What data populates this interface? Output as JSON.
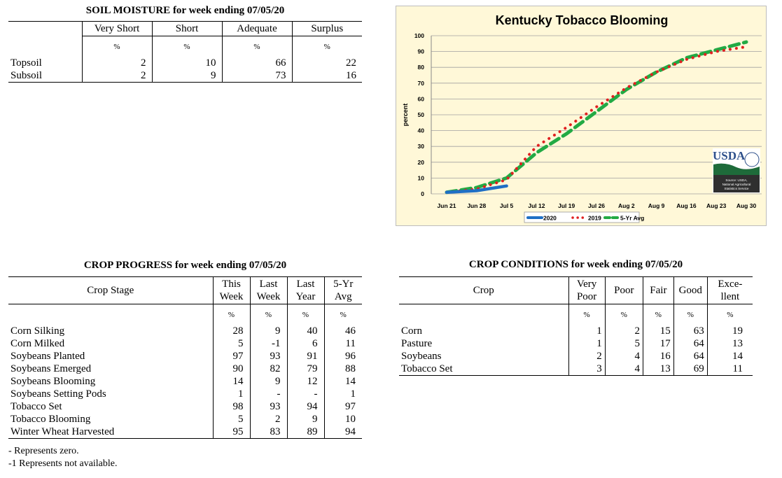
{
  "soil": {
    "title": "SOIL MOISTURE for week ending 07/05/20",
    "columns": [
      "Very Short",
      "Short",
      "Adequate",
      "Surplus"
    ],
    "unit": "%",
    "rows": [
      {
        "label": "Topsoil",
        "values": [
          "2",
          "10",
          "66",
          "22"
        ]
      },
      {
        "label": "Subsoil",
        "values": [
          "2",
          "9",
          "73",
          "16"
        ]
      }
    ]
  },
  "progress": {
    "title": "CROP PROGRESS for week ending 07/05/20",
    "stage_header": "Crop Stage",
    "columns": [
      {
        "line1": "This",
        "line2": "Week"
      },
      {
        "line1": "Last",
        "line2": "Week"
      },
      {
        "line1": "Last",
        "line2": "Year"
      },
      {
        "line1": "5-Yr",
        "line2": "Avg"
      }
    ],
    "unit": "%",
    "rows": [
      {
        "label": "Corn Silking",
        "values": [
          "28",
          "9",
          "40",
          "46"
        ]
      },
      {
        "label": "Corn Milked",
        "values": [
          "5",
          "-1",
          "6",
          "11"
        ]
      },
      {
        "label": "Soybeans Planted",
        "values": [
          "97",
          "93",
          "91",
          "96"
        ]
      },
      {
        "label": "Soybeans Emerged",
        "values": [
          "90",
          "82",
          "79",
          "88"
        ]
      },
      {
        "label": "Soybeans Blooming",
        "values": [
          "14",
          "9",
          "12",
          "14"
        ]
      },
      {
        "label": "Soybeans Setting Pods",
        "values": [
          "1",
          "-",
          "-",
          "1"
        ]
      },
      {
        "label": "Tobacco Set",
        "values": [
          "98",
          "93",
          "94",
          "97"
        ]
      },
      {
        "label": "Tobacco Blooming",
        "values": [
          "5",
          "2",
          "9",
          "10"
        ]
      },
      {
        "label": "Winter Wheat Harvested",
        "values": [
          "95",
          "83",
          "89",
          "94"
        ]
      }
    ],
    "footnotes": [
      "- Represents zero.",
      "-1 Represents not available."
    ]
  },
  "conditions": {
    "title": "CROP CONDITIONS for week ending 07/05/20",
    "crop_header": "Crop",
    "columns": [
      {
        "line1": "Very",
        "line2": "Poor"
      },
      {
        "line1": "Poor",
        "line2": ""
      },
      {
        "line1": "Fair",
        "line2": ""
      },
      {
        "line1": "Good",
        "line2": ""
      },
      {
        "line1": "Exce-",
        "line2": "llent"
      }
    ],
    "unit": "%",
    "rows": [
      {
        "label": "Corn",
        "values": [
          "1",
          "2",
          "15",
          "63",
          "19"
        ]
      },
      {
        "label": "Pasture",
        "values": [
          "1",
          "5",
          "17",
          "64",
          "13"
        ]
      },
      {
        "label": "Soybeans",
        "values": [
          "2",
          "4",
          "16",
          "64",
          "14"
        ]
      },
      {
        "label": "Tobacco Set",
        "values": [
          "3",
          "4",
          "13",
          "69",
          "11"
        ]
      }
    ]
  },
  "chart_data": {
    "type": "line",
    "title": "Kentucky Tobacco Blooming",
    "ylabel": "percent",
    "xlabel": "",
    "ylim": [
      0,
      100
    ],
    "yticks": [
      0,
      10,
      20,
      30,
      40,
      50,
      60,
      70,
      80,
      90,
      100
    ],
    "categories": [
      "Jun 21",
      "Jun 28",
      "Jul 5",
      "Jul 12",
      "Jul 19",
      "Jul 26",
      "Aug 2",
      "Aug 9",
      "Aug 16",
      "Aug 23",
      "Aug 30"
    ],
    "grid": true,
    "legend_position": "bottom",
    "series": [
      {
        "name": "2020",
        "color": "#1f6fc5",
        "style": "solid",
        "values": [
          1,
          2,
          5,
          null,
          null,
          null,
          null,
          null,
          null,
          null,
          null
        ]
      },
      {
        "name": "2019",
        "color": "#e02020",
        "style": "dotted",
        "values": [
          1,
          3,
          9,
          30,
          42,
          55,
          67,
          77,
          85,
          90,
          93
        ]
      },
      {
        "name": "5-Yr Avg",
        "color": "#22aa44",
        "style": "dashed",
        "values": [
          1,
          4,
          10,
          26,
          38,
          52,
          66,
          77,
          86,
          91,
          96
        ]
      }
    ],
    "source_logo": {
      "text": "USDA",
      "caption": "Source: USDA, National Agricultural Statistics Service"
    }
  }
}
